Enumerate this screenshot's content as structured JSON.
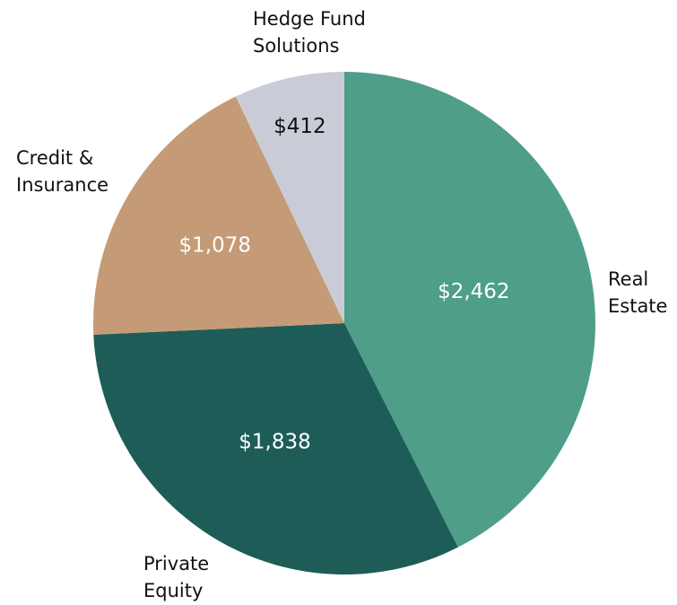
{
  "chart_data": {
    "type": "pie",
    "categories": [
      "Real\nEstate",
      "Private\nEquity",
      "Credit &\nInsurance",
      "Hedge Fund\nSolutions"
    ],
    "values": [
      2462,
      1838,
      1078,
      412
    ],
    "value_labels": [
      "$2,462",
      "$1,838",
      "$1,078",
      "$412"
    ],
    "colors": [
      "#4e9e8a",
      "#1e5c58",
      "#c49b76",
      "#c9ccd6"
    ]
  }
}
